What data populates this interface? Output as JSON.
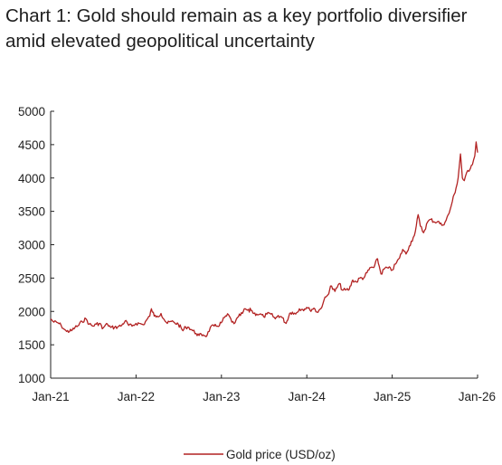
{
  "chart_data": {
    "type": "line",
    "title": "Chart 1: Gold should remain as a key portfolio diversifier amid elevated geopolitical uncertainty",
    "xlabel": "",
    "ylabel": "",
    "ylim": [
      1000,
      5000
    ],
    "yticks": [
      "5000",
      "4500",
      "4000",
      "3500",
      "3000",
      "2500",
      "2000",
      "1500",
      "1000"
    ],
    "xlim": [
      "2021-01-01",
      "2026-01-01"
    ],
    "xticks": [
      "Jan-21",
      "Jan-22",
      "Jan-23",
      "Jan-24",
      "Jan-25",
      "Jan-26"
    ],
    "grid": false,
    "legend_position": "bottom-center",
    "colors": {
      "line": "#b22222",
      "axis": "#222222"
    },
    "series": [
      {
        "name": "Gold price (USD/oz)",
        "x": [
          "2021-01-01",
          "2021-01-15",
          "2021-02-01",
          "2021-02-15",
          "2021-03-01",
          "2021-03-10",
          "2021-03-31",
          "2021-04-15",
          "2021-05-01",
          "2021-05-15",
          "2021-06-01",
          "2021-06-15",
          "2021-07-01",
          "2021-07-15",
          "2021-08-01",
          "2021-08-10",
          "2021-08-20",
          "2021-09-01",
          "2021-09-15",
          "2021-10-01",
          "2021-10-15",
          "2021-11-01",
          "2021-11-16",
          "2021-12-01",
          "2021-12-15",
          "2022-01-01",
          "2022-01-15",
          "2022-02-01",
          "2022-02-15",
          "2022-03-01",
          "2022-03-08",
          "2022-03-20",
          "2022-04-01",
          "2022-04-18",
          "2022-05-01",
          "2022-05-15",
          "2022-06-01",
          "2022-06-15",
          "2022-07-01",
          "2022-07-21",
          "2022-08-01",
          "2022-08-15",
          "2022-09-01",
          "2022-09-15",
          "2022-09-28",
          "2022-10-15",
          "2022-11-01",
          "2022-11-15",
          "2022-12-01",
          "2022-12-15",
          "2023-01-01",
          "2023-01-15",
          "2023-02-01",
          "2023-02-15",
          "2023-03-01",
          "2023-03-15",
          "2023-04-01",
          "2023-04-13",
          "2023-05-01",
          "2023-05-04",
          "2023-05-20",
          "2023-06-01",
          "2023-06-15",
          "2023-07-01",
          "2023-07-15",
          "2023-08-01",
          "2023-08-20",
          "2023-09-01",
          "2023-09-15",
          "2023-10-05",
          "2023-10-20",
          "2023-11-01",
          "2023-11-15",
          "2023-12-01",
          "2023-12-15",
          "2024-01-01",
          "2024-01-15",
          "2024-02-01",
          "2024-02-14",
          "2024-03-01",
          "2024-03-15",
          "2024-04-01",
          "2024-04-12",
          "2024-05-01",
          "2024-05-20",
          "2024-06-01",
          "2024-06-15",
          "2024-07-01",
          "2024-07-16",
          "2024-08-01",
          "2024-08-15",
          "2024-09-01",
          "2024-09-15",
          "2024-10-01",
          "2024-10-15",
          "2024-10-30",
          "2024-11-14",
          "2024-12-01",
          "2024-12-15",
          "2025-01-01",
          "2025-01-15",
          "2025-02-01",
          "2025-02-15",
          "2025-03-01",
          "2025-03-15",
          "2025-04-01",
          "2025-04-10",
          "2025-04-22",
          "2025-05-01",
          "2025-05-15",
          "2025-06-01",
          "2025-06-15",
          "2025-07-01",
          "2025-07-15",
          "2025-08-01",
          "2025-08-15",
          "2025-09-01",
          "2025-09-15",
          "2025-10-01",
          "2025-10-10",
          "2025-10-20",
          "2025-10-28",
          "2025-11-05",
          "2025-11-15",
          "2025-11-25",
          "2025-12-01",
          "2025-12-10",
          "2025-12-20",
          "2025-12-26",
          "2026-01-01"
        ],
        "values": [
          1890,
          1840,
          1830,
          1790,
          1730,
          1700,
          1710,
          1760,
          1790,
          1850,
          1890,
          1810,
          1780,
          1810,
          1820,
          1740,
          1780,
          1810,
          1760,
          1760,
          1770,
          1790,
          1860,
          1790,
          1780,
          1820,
          1820,
          1800,
          1870,
          1930,
          2040,
          1930,
          1930,
          1970,
          1880,
          1820,
          1850,
          1830,
          1810,
          1710,
          1770,
          1760,
          1710,
          1670,
          1640,
          1650,
          1640,
          1760,
          1780,
          1780,
          1830,
          1910,
          1950,
          1840,
          1830,
          1920,
          1970,
          2040,
          1990,
          2050,
          1970,
          1960,
          1960,
          1920,
          1960,
          1960,
          1890,
          1940,
          1920,
          1820,
          1970,
          1990,
          1960,
          2040,
          2030,
          2060,
          2020,
          2050,
          1990,
          2040,
          2170,
          2250,
          2380,
          2300,
          2420,
          2320,
          2320,
          2330,
          2470,
          2440,
          2500,
          2500,
          2580,
          2660,
          2660,
          2790,
          2560,
          2650,
          2650,
          2620,
          2710,
          2800,
          2930,
          2860,
          2980,
          3110,
          3200,
          3450,
          3280,
          3180,
          3340,
          3380,
          3340,
          3350,
          3290,
          3340,
          3470,
          3650,
          3850,
          4000,
          4360,
          4000,
          3960,
          4080,
          4100,
          4140,
          4200,
          4330,
          4540,
          4380
        ]
      }
    ]
  }
}
